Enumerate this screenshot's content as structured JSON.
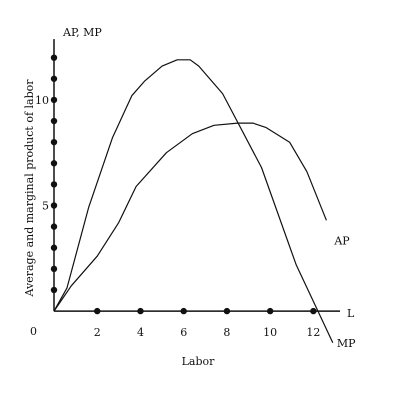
{
  "chart_data": {
    "type": "line",
    "xlabel": "Labor",
    "ylabel": "Average and marginal product of labor",
    "y_axis_title": "AP, MP",
    "x_axis_end_label": "L",
    "origin_label": "0",
    "xlim": [
      0,
      13
    ],
    "ylim": [
      -1.7,
      13.5
    ],
    "x_ticks": [
      {
        "value": 2,
        "label": "2"
      },
      {
        "value": 4,
        "label": "4"
      },
      {
        "value": 6,
        "label": "6"
      },
      {
        "value": 8,
        "label": "8"
      },
      {
        "value": 10,
        "label": "10"
      },
      {
        "value": 12,
        "label": "12"
      }
    ],
    "y_ticks": [
      {
        "value": 5,
        "label": "5"
      },
      {
        "value": 10,
        "label": "10"
      }
    ],
    "y_dots": [
      1,
      2,
      3,
      4,
      5,
      6,
      7,
      8,
      9,
      10,
      11,
      12
    ],
    "series": [
      {
        "name": "AP",
        "x": [
          0,
          0.8,
          2,
          3,
          3.8,
          5.2,
          6.4,
          7.4,
          8.5,
          9.2,
          9.8,
          10.9,
          11.7,
          12.6
        ],
        "y": [
          0,
          1.2,
          2.6,
          4.2,
          5.9,
          7.5,
          8.4,
          8.8,
          8.9,
          8.9,
          8.7,
          8.0,
          6.6,
          4.3
        ]
      },
      {
        "name": "MP",
        "x": [
          0,
          0.6,
          1.6,
          2.7,
          3.6,
          4.2,
          5.0,
          5.7,
          6.3,
          6.7,
          7.8,
          9.6,
          11.2,
          12.9
        ],
        "y": [
          0,
          1.1,
          4.9,
          8.2,
          10.2,
          10.9,
          11.6,
          11.9,
          11.9,
          11.6,
          10.3,
          6.8,
          2.2,
          -1.5
        ]
      }
    ]
  }
}
